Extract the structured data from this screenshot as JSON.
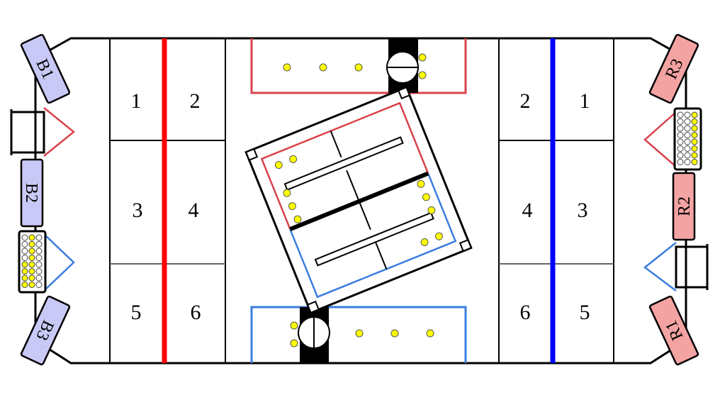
{
  "colors": {
    "red_line": "#ff0000",
    "blue_line": "#0000ff",
    "red_outline": "#d9434b",
    "blue_outline": "#3b7de0",
    "red_station": "#f4a3a3",
    "blue_station": "#c9c9f7",
    "ball": "#ffff00",
    "black": "#000000"
  },
  "left_zones": [
    "1",
    "2",
    "3",
    "4",
    "5",
    "6"
  ],
  "right_zones": [
    "2",
    "1",
    "4",
    "3",
    "6",
    "5"
  ],
  "blue_stations": {
    "top": "B1",
    "middle": "B2",
    "bottom": "B3"
  },
  "red_stations": {
    "top": "R3",
    "middle": "R2",
    "bottom": "R1"
  },
  "ball_racks": {
    "left_balls_per_column": [
      4,
      8,
      0
    ],
    "right_balls_per_column": [
      0,
      0,
      8
    ]
  }
}
